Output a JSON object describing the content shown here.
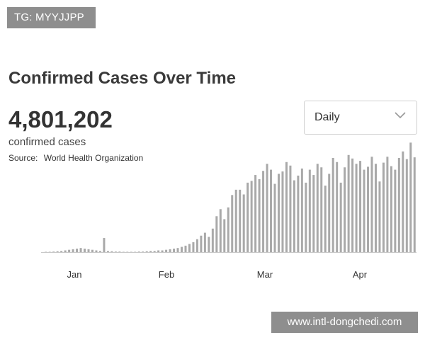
{
  "overlay": {
    "tg_text": "TG: MYYJJPP",
    "watermark_text": "www.intl-dongchedi.com"
  },
  "header": {
    "title": "Confirmed Cases Over Time",
    "total": "4,801,202",
    "total_label": "confirmed cases",
    "source_label": "Source:",
    "source_name": "World Health Organization"
  },
  "period_select": {
    "value": "Daily",
    "icon": "chevron-down-icon"
  },
  "colors": {
    "bar": "#a9a9a9",
    "baseline": "#c9c9c9"
  },
  "chart_data": {
    "type": "bar",
    "x_tick_labels": [
      "Jan",
      "Feb",
      "Mar",
      "Apr"
    ],
    "values": [
      0,
      0.5,
      1,
      1.5,
      2,
      3,
      4,
      5,
      6,
      7,
      6,
      5,
      4,
      3,
      2,
      24,
      2,
      1.5,
      1,
      1,
      0.5,
      0.5,
      0,
      0.5,
      1,
      1,
      1.5,
      2,
      2,
      3,
      3,
      4,
      5,
      6,
      7,
      9,
      11,
      14,
      17,
      22,
      28,
      33,
      26,
      40,
      61,
      73,
      56,
      76,
      97,
      106,
      106,
      98,
      118,
      121,
      131,
      124,
      138,
      150,
      140,
      116,
      133,
      137,
      153,
      147,
      122,
      130,
      142,
      118,
      140,
      131,
      150,
      144,
      113,
      133,
      160,
      153,
      118,
      144,
      165,
      159,
      150,
      155,
      140,
      145,
      162,
      150,
      120,
      152,
      162,
      146,
      140,
      160,
      171,
      158,
      186,
      161
    ],
    "ylim": [
      0,
      190
    ]
  }
}
